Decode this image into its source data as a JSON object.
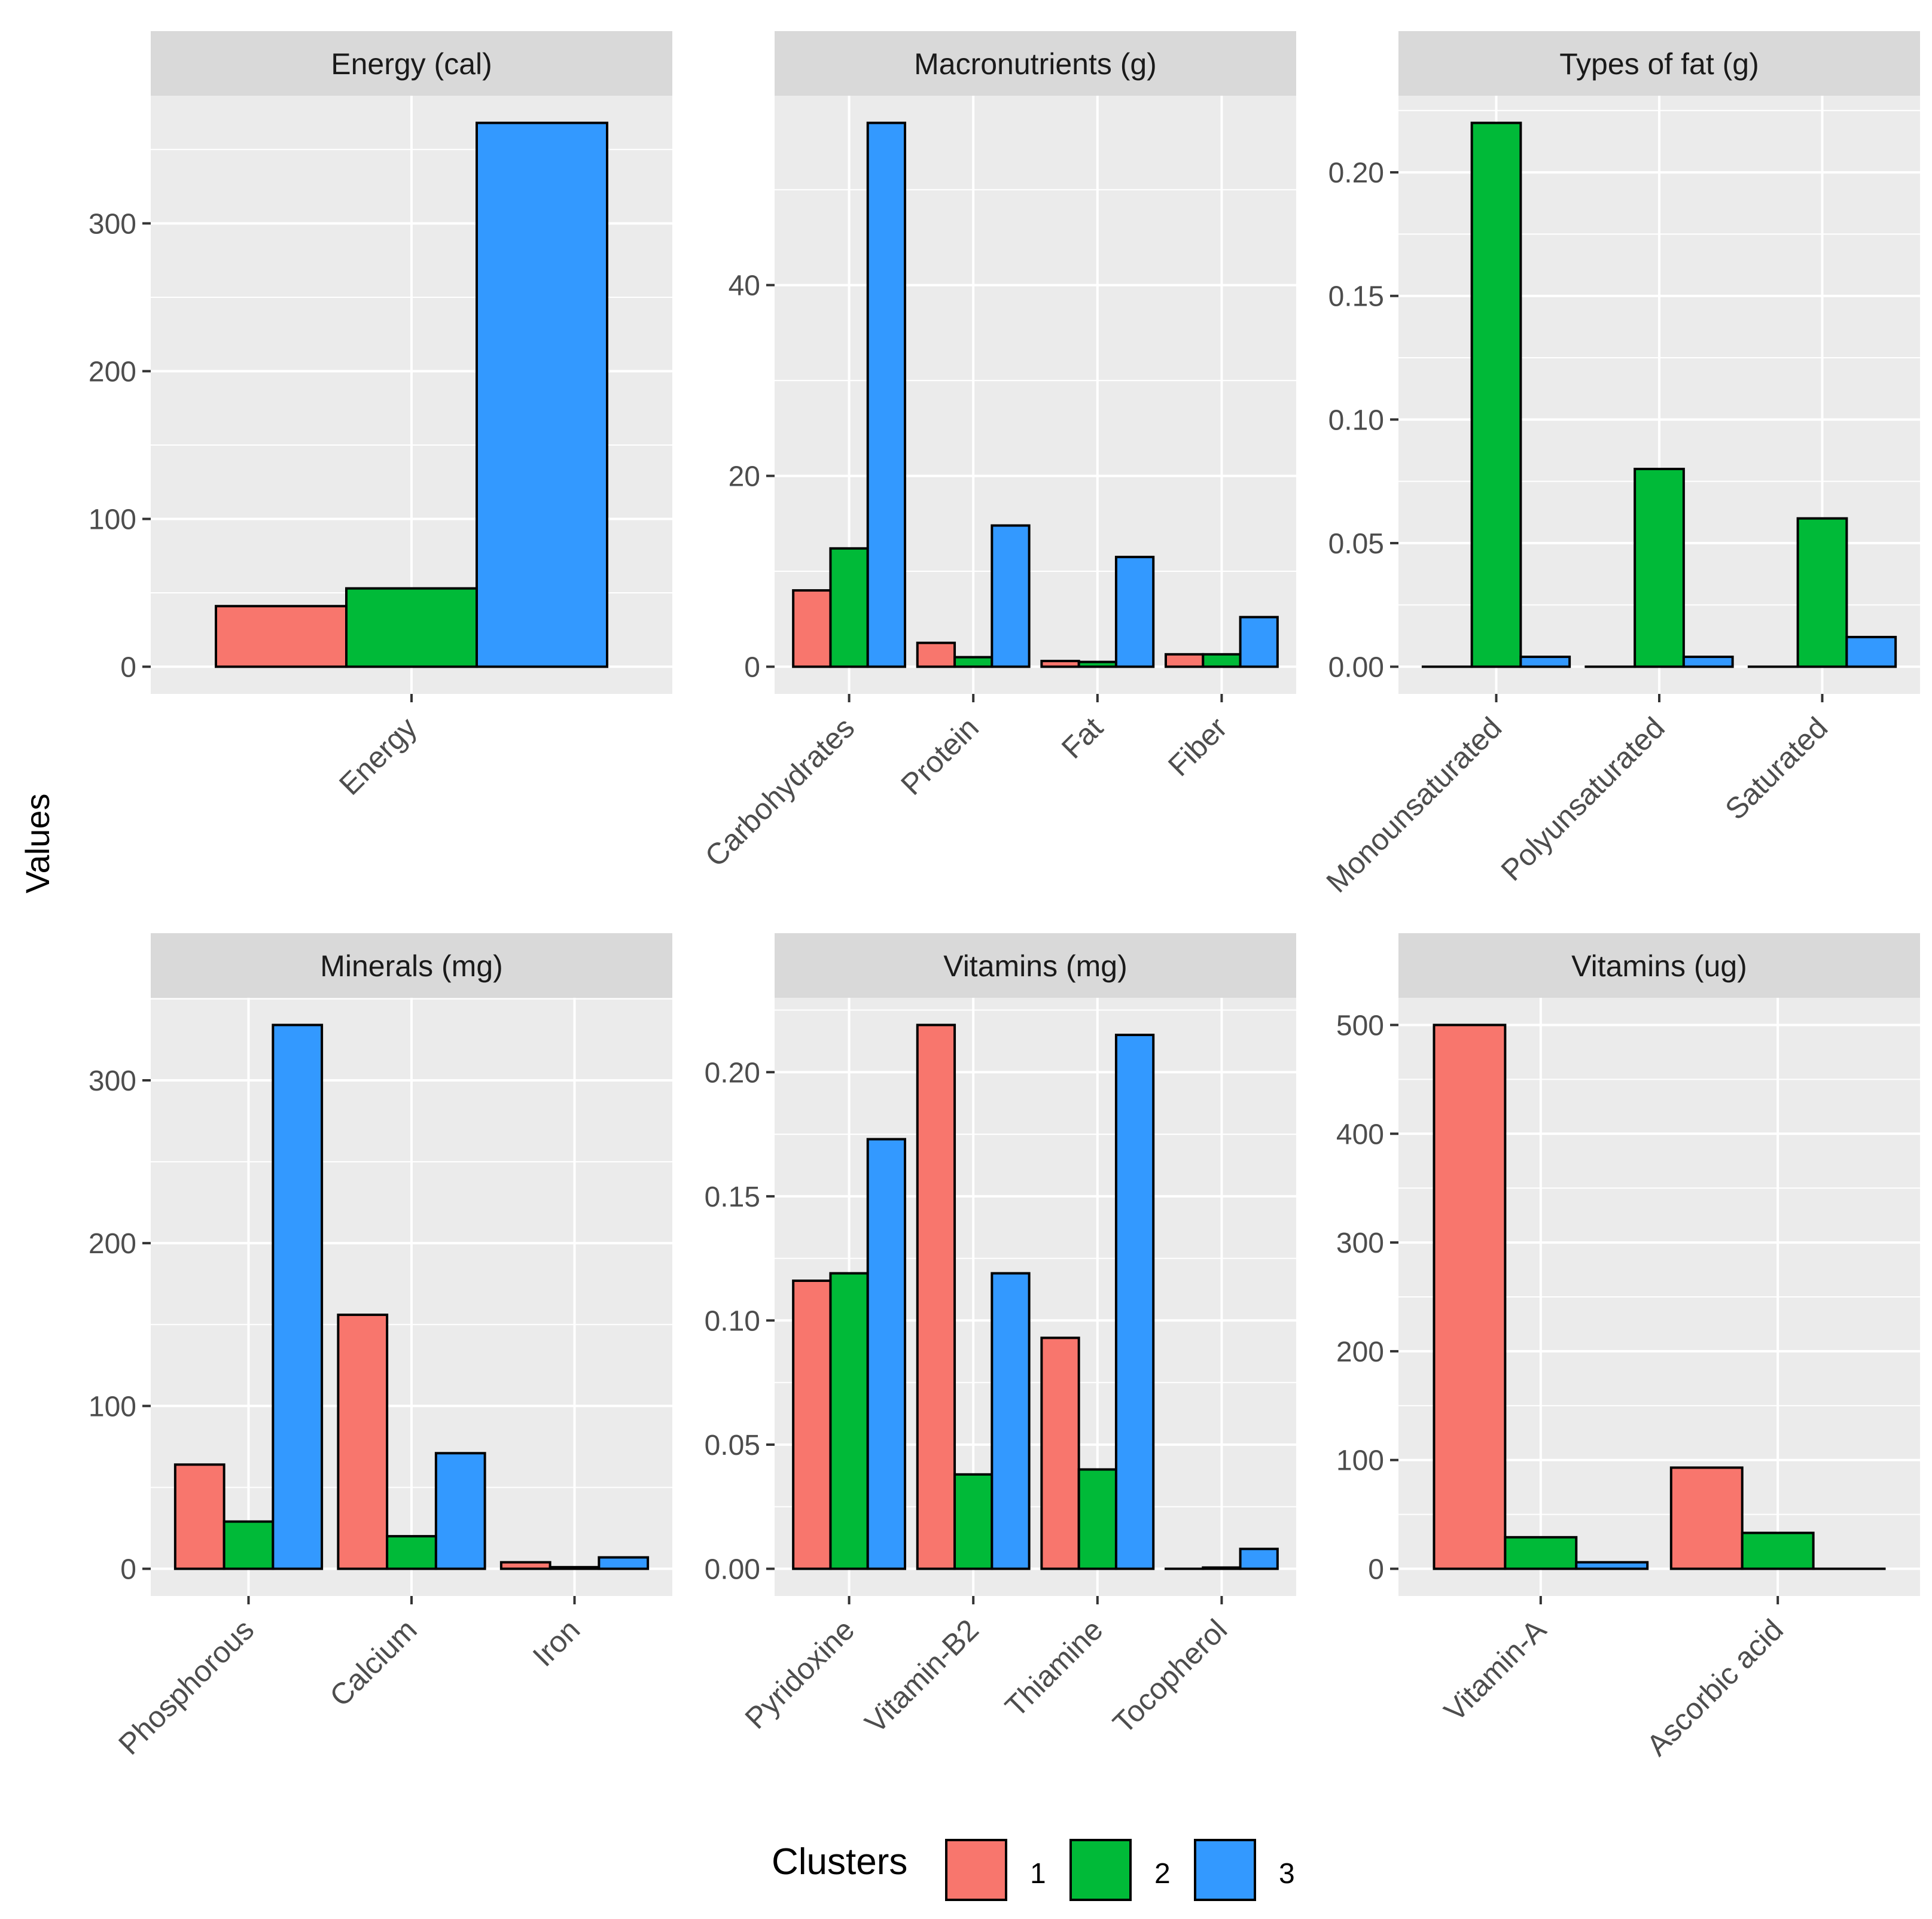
{
  "y_label": "Values",
  "legend": {
    "title": "Clusters",
    "items": [
      {
        "label": "1",
        "color": "#F8766D"
      },
      {
        "label": "2",
        "color": "#00BA38"
      },
      {
        "label": "3",
        "color": "#3399FF"
      }
    ]
  },
  "chart_data": [
    {
      "type": "bar",
      "title": "Energy (cal)",
      "categories": [
        "Energy"
      ],
      "series": [
        {
          "name": "1",
          "values": [
            41
          ]
        },
        {
          "name": "2",
          "values": [
            53
          ]
        },
        {
          "name": "3",
          "values": [
            368
          ]
        }
      ],
      "ylim": [
        -18.4,
        386.4
      ],
      "ticks": [
        0,
        100,
        200,
        300
      ],
      "tick_labels": [
        "0",
        "100",
        "200",
        "300"
      ],
      "xlabel": "",
      "ylabel": "Values"
    },
    {
      "type": "bar",
      "title": "Macronutrients (g)",
      "categories": [
        "Carbohydrates",
        "Protein",
        "Fat",
        "Fiber"
      ],
      "series": [
        {
          "name": "1",
          "values": [
            8.0,
            2.5,
            0.6,
            1.3
          ]
        },
        {
          "name": "2",
          "values": [
            12.4,
            1.0,
            0.5,
            1.3
          ]
        },
        {
          "name": "3",
          "values": [
            57.0,
            14.8,
            11.5,
            5.2
          ]
        }
      ],
      "ylim": [
        -2.85,
        59.85
      ],
      "ticks": [
        0,
        20,
        40
      ],
      "tick_labels": [
        "0",
        "20",
        "40"
      ],
      "xlabel": "",
      "ylabel": "Values"
    },
    {
      "type": "bar",
      "title": "Types of fat (g)",
      "categories": [
        "Monounsaturated",
        "Polyunsaturated",
        "Saturated"
      ],
      "series": [
        {
          "name": "1",
          "values": [
            0.0,
            0.0,
            0.0
          ]
        },
        {
          "name": "2",
          "values": [
            0.22,
            0.08,
            0.06
          ]
        },
        {
          "name": "3",
          "values": [
            0.004,
            0.004,
            0.012
          ]
        }
      ],
      "ylim": [
        -0.011,
        0.231
      ],
      "ticks": [
        0,
        0.05,
        0.1,
        0.15,
        0.2
      ],
      "tick_labels": [
        "0.00",
        "0.05",
        "0.10",
        "0.15",
        "0.20"
      ],
      "xlabel": "",
      "ylabel": "Values"
    },
    {
      "type": "bar",
      "title": "Minerals (mg)",
      "categories": [
        "Phosphorous",
        "Calcium",
        "Iron"
      ],
      "series": [
        {
          "name": "1",
          "values": [
            64,
            156,
            4
          ]
        },
        {
          "name": "2",
          "values": [
            29,
            20,
            1
          ]
        },
        {
          "name": "3",
          "values": [
            334,
            71,
            7
          ]
        }
      ],
      "ylim": [
        -16.7,
        350.7
      ],
      "ticks": [
        0,
        100,
        200,
        300
      ],
      "tick_labels": [
        "0",
        "100",
        "200",
        "300"
      ],
      "xlabel": "",
      "ylabel": "Values"
    },
    {
      "type": "bar",
      "title": "Vitamins (mg)",
      "categories": [
        "Pyridoxine",
        "Vitamin-B2",
        "Thiamine",
        "Tocopherol"
      ],
      "series": [
        {
          "name": "1",
          "values": [
            0.116,
            0.219,
            0.093,
            0.0
          ]
        },
        {
          "name": "2",
          "values": [
            0.119,
            0.038,
            0.04,
            0.0005
          ]
        },
        {
          "name": "3",
          "values": [
            0.173,
            0.119,
            0.215,
            0.008
          ]
        }
      ],
      "ylim": [
        -0.01095,
        0.22995
      ],
      "ticks": [
        0,
        0.05,
        0.1,
        0.15,
        0.2
      ],
      "tick_labels": [
        "0.00",
        "0.05",
        "0.10",
        "0.15",
        "0.20"
      ],
      "xlabel": "",
      "ylabel": "Values"
    },
    {
      "type": "bar",
      "title": "Vitamins (ug)",
      "categories": [
        "Vitamin-A",
        "Ascorbic acid"
      ],
      "series": [
        {
          "name": "1",
          "values": [
            500,
            93
          ]
        },
        {
          "name": "2",
          "values": [
            29,
            33
          ]
        },
        {
          "name": "3",
          "values": [
            6,
            0
          ]
        }
      ],
      "ylim": [
        -25,
        525
      ],
      "ticks": [
        0,
        100,
        200,
        300,
        400,
        500
      ],
      "tick_labels": [
        "0",
        "100",
        "200",
        "300",
        "400",
        "500"
      ],
      "xlabel": "",
      "ylabel": "Values"
    }
  ]
}
